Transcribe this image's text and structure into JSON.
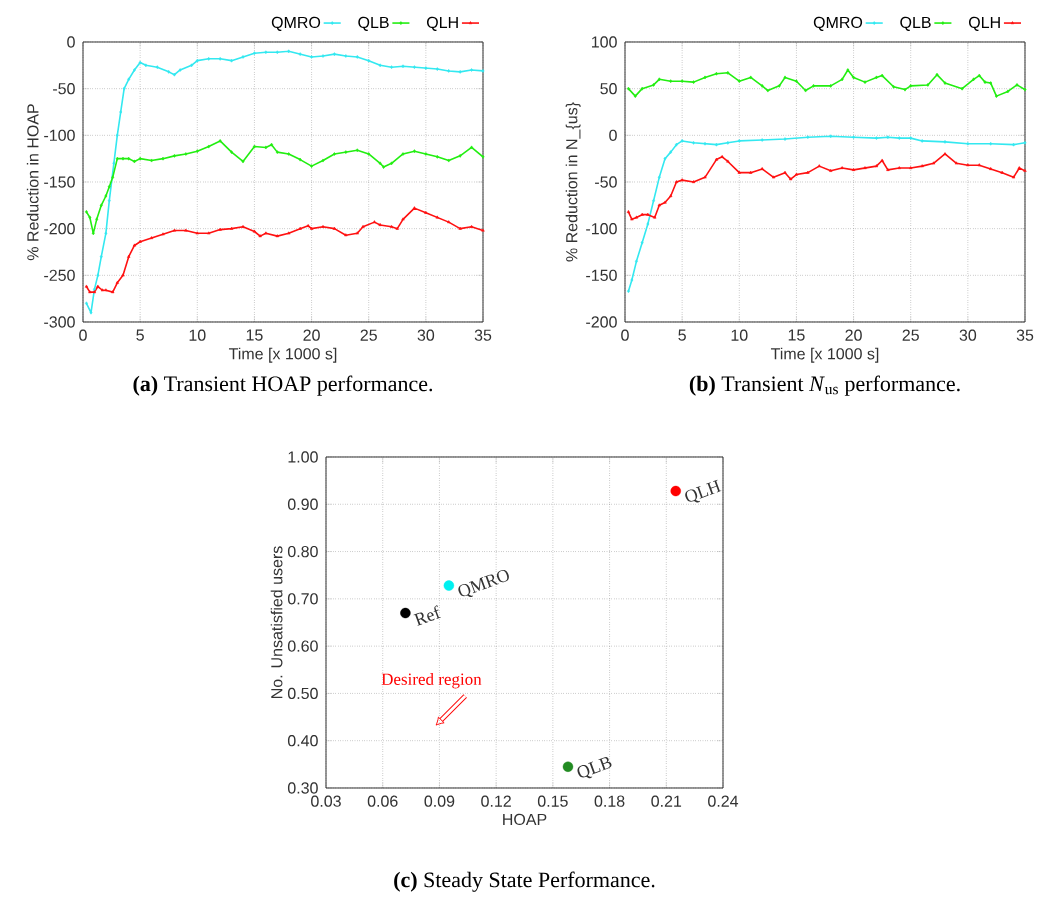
{
  "chart_data": [
    {
      "type": "line",
      "title": "**(a)** Transient HOAP performance.",
      "xlabel": "Time [x 1000 s]",
      "ylabel": "% Reduction in HOAP",
      "xlim": [
        0,
        35
      ],
      "ylim": [
        -300,
        0
      ],
      "xticks": [
        0,
        5,
        10,
        15,
        20,
        25,
        30,
        35
      ],
      "yticks": [
        -300,
        -250,
        -200,
        -150,
        -100,
        -50,
        0
      ],
      "grid": true,
      "legend": "top right",
      "series": [
        {
          "name": "QMRO",
          "color": "#33e8f0",
          "marker": "diamond",
          "x": [
            0.3,
            0.7,
            1.0,
            1.3,
            1.6,
            2.0,
            2.3,
            2.7,
            3.0,
            3.3,
            3.6,
            4.0,
            4.5,
            5.0,
            5.5,
            6.5,
            7.5,
            8.0,
            8.5,
            9.5,
            10,
            11,
            12,
            13,
            14,
            15,
            16,
            17,
            18,
            19,
            20,
            21,
            22,
            23,
            24,
            25,
            26,
            27,
            28,
            29,
            30,
            31,
            32,
            33,
            34,
            35
          ],
          "values": [
            -280,
            -290,
            -265,
            -250,
            -230,
            -205,
            -170,
            -130,
            -100,
            -75,
            -50,
            -40,
            -30,
            -22,
            -25,
            -27,
            -32,
            -35,
            -30,
            -25,
            -20,
            -18,
            -18,
            -20,
            -16,
            -12,
            -11,
            -11,
            -10,
            -13,
            -16,
            -15,
            -13,
            -15,
            -16,
            -20,
            -25,
            -27,
            -26,
            -27,
            -28,
            -29,
            -31,
            -32,
            -30,
            -31
          ]
        },
        {
          "name": "QLB",
          "color": "#22ee11",
          "marker": "diamond",
          "x": [
            0.3,
            0.6,
            0.9,
            1.2,
            1.6,
            2.0,
            2.3,
            2.6,
            3.0,
            3.5,
            4.0,
            4.5,
            5,
            6,
            7,
            8,
            9,
            10,
            11,
            12,
            13,
            14,
            15,
            16,
            16.5,
            17,
            18,
            19,
            20,
            21,
            22,
            23,
            24,
            25,
            26,
            26.3,
            27,
            28,
            29,
            30,
            31,
            32,
            33,
            34,
            35
          ],
          "values": [
            -182,
            -188,
            -205,
            -190,
            -175,
            -165,
            -155,
            -145,
            -125,
            -125,
            -125,
            -128,
            -125,
            -127,
            -125,
            -122,
            -120,
            -117,
            -112,
            -106,
            -118,
            -128,
            -112,
            -113,
            -110,
            -118,
            -120,
            -126,
            -133,
            -127,
            -120,
            -118,
            -116,
            -120,
            -130,
            -134,
            -130,
            -120,
            -117,
            -120,
            -123,
            -127,
            -122,
            -113,
            -123
          ]
        },
        {
          "name": "QLH",
          "color": "#ff1111",
          "marker": "triangle",
          "x": [
            0.3,
            0.6,
            1.0,
            1.3,
            1.7,
            2.0,
            2.6,
            3.0,
            3.5,
            4.0,
            4.5,
            5,
            6,
            7,
            8,
            9,
            10,
            11,
            12,
            13,
            14,
            15,
            15.5,
            16,
            17,
            18,
            19,
            19.7,
            20,
            21,
            22,
            23,
            24,
            24.5,
            25.5,
            26,
            27,
            27.5,
            28,
            29,
            30,
            31,
            32,
            33,
            34,
            35
          ],
          "values": [
            -262,
            -268,
            -268,
            -262,
            -266,
            -266,
            -268,
            -258,
            -250,
            -230,
            -218,
            -214,
            -210,
            -206,
            -202,
            -202,
            -205,
            -205,
            -201,
            -200,
            -198,
            -203,
            -208,
            -205,
            -208,
            -205,
            -200,
            -197,
            -200,
            -198,
            -200,
            -207,
            -205,
            -198,
            -193,
            -196,
            -198,
            -200,
            -190,
            -178,
            -183,
            -188,
            -193,
            -200,
            -198,
            -202
          ]
        }
      ]
    },
    {
      "type": "line",
      "title": "**(b)** Transient *N*$_{us}$ performance.",
      "xlabel": "Time [x 1000 s]",
      "ylabel": "% Reduction in N_{us}",
      "xlim": [
        0,
        35
      ],
      "ylim": [
        -200,
        100
      ],
      "xticks": [
        0,
        5,
        10,
        15,
        20,
        25,
        30,
        35
      ],
      "yticks": [
        -200,
        -150,
        -100,
        -50,
        0,
        50,
        100
      ],
      "grid": true,
      "legend": "top right",
      "series": [
        {
          "name": "QMRO",
          "color": "#33e8f0",
          "marker": "diamond",
          "x": [
            0.3,
            0.6,
            1.0,
            1.5,
            2.0,
            2.5,
            3.0,
            3.5,
            4.0,
            4.5,
            5,
            6,
            7,
            8,
            9,
            10,
            12,
            14,
            16,
            18,
            20,
            22,
            23,
            24,
            25,
            26,
            28,
            30,
            32,
            34,
            35
          ],
          "values": [
            -167,
            -155,
            -135,
            -115,
            -95,
            -70,
            -45,
            -25,
            -18,
            -10,
            -6,
            -8,
            -9,
            -10,
            -8,
            -6,
            -5,
            -4,
            -2,
            -1,
            -2,
            -3,
            -2,
            -3,
            -3,
            -6,
            -7,
            -9,
            -9,
            -10,
            -8
          ]
        },
        {
          "name": "QLB",
          "color": "#22ee11",
          "marker": "diamond",
          "x": [
            0.3,
            0.9,
            1.5,
            2.5,
            3.0,
            4,
            5,
            6,
            7,
            8,
            9,
            10,
            11,
            12,
            12.5,
            13.5,
            14,
            15,
            15.8,
            16.5,
            18,
            19,
            19.5,
            20,
            21,
            22,
            22.5,
            23.5,
            24.5,
            25,
            26.5,
            27.3,
            28,
            29.5,
            30.5,
            31,
            31.5,
            32,
            32.5,
            33.5,
            34.3,
            35
          ],
          "values": [
            50,
            42,
            50,
            54,
            60,
            58,
            58,
            57,
            62,
            66,
            67,
            58,
            62,
            53,
            48,
            53,
            62,
            58,
            48,
            53,
            53,
            60,
            70,
            62,
            57,
            62,
            64,
            52,
            49,
            53,
            54,
            65,
            56,
            50,
            60,
            64,
            57,
            56,
            42,
            47,
            54,
            49
          ]
        },
        {
          "name": "QLH",
          "color": "#ff1111",
          "marker": "triangle",
          "x": [
            0.3,
            0.6,
            1.0,
            1.5,
            2.0,
            2.6,
            3.0,
            3.5,
            4.0,
            4.5,
            5,
            6,
            7,
            8,
            8.5,
            9,
            10,
            11,
            12,
            13,
            14,
            14.5,
            15,
            16,
            17,
            18,
            19,
            20,
            21,
            22,
            22.5,
            23,
            24,
            25,
            26,
            27,
            28,
            29,
            30,
            31,
            32,
            33,
            34,
            34.5,
            35
          ],
          "values": [
            -82,
            -90,
            -88,
            -85,
            -85,
            -88,
            -75,
            -72,
            -65,
            -50,
            -48,
            -50,
            -45,
            -26,
            -23,
            -28,
            -40,
            -40,
            -36,
            -45,
            -40,
            -47,
            -42,
            -40,
            -33,
            -38,
            -35,
            -37,
            -35,
            -33,
            -27,
            -37,
            -35,
            -35,
            -33,
            -30,
            -20,
            -30,
            -32,
            -32,
            -36,
            -40,
            -45,
            -35,
            -38
          ]
        }
      ]
    },
    {
      "type": "scatter",
      "title": "**(c)** Steady State Performance.",
      "xlabel": "HOAP",
      "ylabel": "No. Unsatisfied users",
      "xlim": [
        0.03,
        0.24
      ],
      "ylim": [
        0.3,
        1.0
      ],
      "xticks": [
        {
          "value": 0.03,
          "label": "0.03"
        },
        {
          "value": 0.06,
          "label": "0.06"
        },
        {
          "value": 0.09,
          "label": "0.09"
        },
        {
          "value": 0.12,
          "label": "0.12"
        },
        {
          "value": 0.15,
          "label": "0.15"
        },
        {
          "value": 0.18,
          "label": "0.18"
        },
        {
          "value": 0.21,
          "label": "0.21"
        },
        {
          "value": 0.24,
          "label": "0.24"
        }
      ],
      "yticks": [
        {
          "value": 0.3,
          "label": "0.30"
        },
        {
          "value": 0.4,
          "label": "0.40"
        },
        {
          "value": 0.5,
          "label": "0.50"
        },
        {
          "value": 0.6,
          "label": "0.60"
        },
        {
          "value": 0.7,
          "label": "0.70"
        },
        {
          "value": 0.8,
          "label": "0.80"
        },
        {
          "value": 0.9,
          "label": "0.90"
        },
        {
          "value": 1.0,
          "label": "1.00"
        }
      ],
      "grid": true,
      "marker": "circle",
      "annotations": [
        "Desired region"
      ],
      "series": [
        {
          "name": "QLH",
          "color": "#ff0000",
          "x": [
            0.215
          ],
          "values": [
            0.928
          ]
        },
        {
          "name": "QMRO",
          "color": "#00f0f0",
          "x": [
            0.095
          ],
          "values": [
            0.728
          ]
        },
        {
          "name": "Ref",
          "color": "#000000",
          "x": [
            0.072
          ],
          "values": [
            0.67
          ]
        },
        {
          "name": "QLB",
          "color": "#228b22",
          "x": [
            0.158
          ],
          "values": [
            0.345
          ]
        }
      ]
    }
  ]
}
